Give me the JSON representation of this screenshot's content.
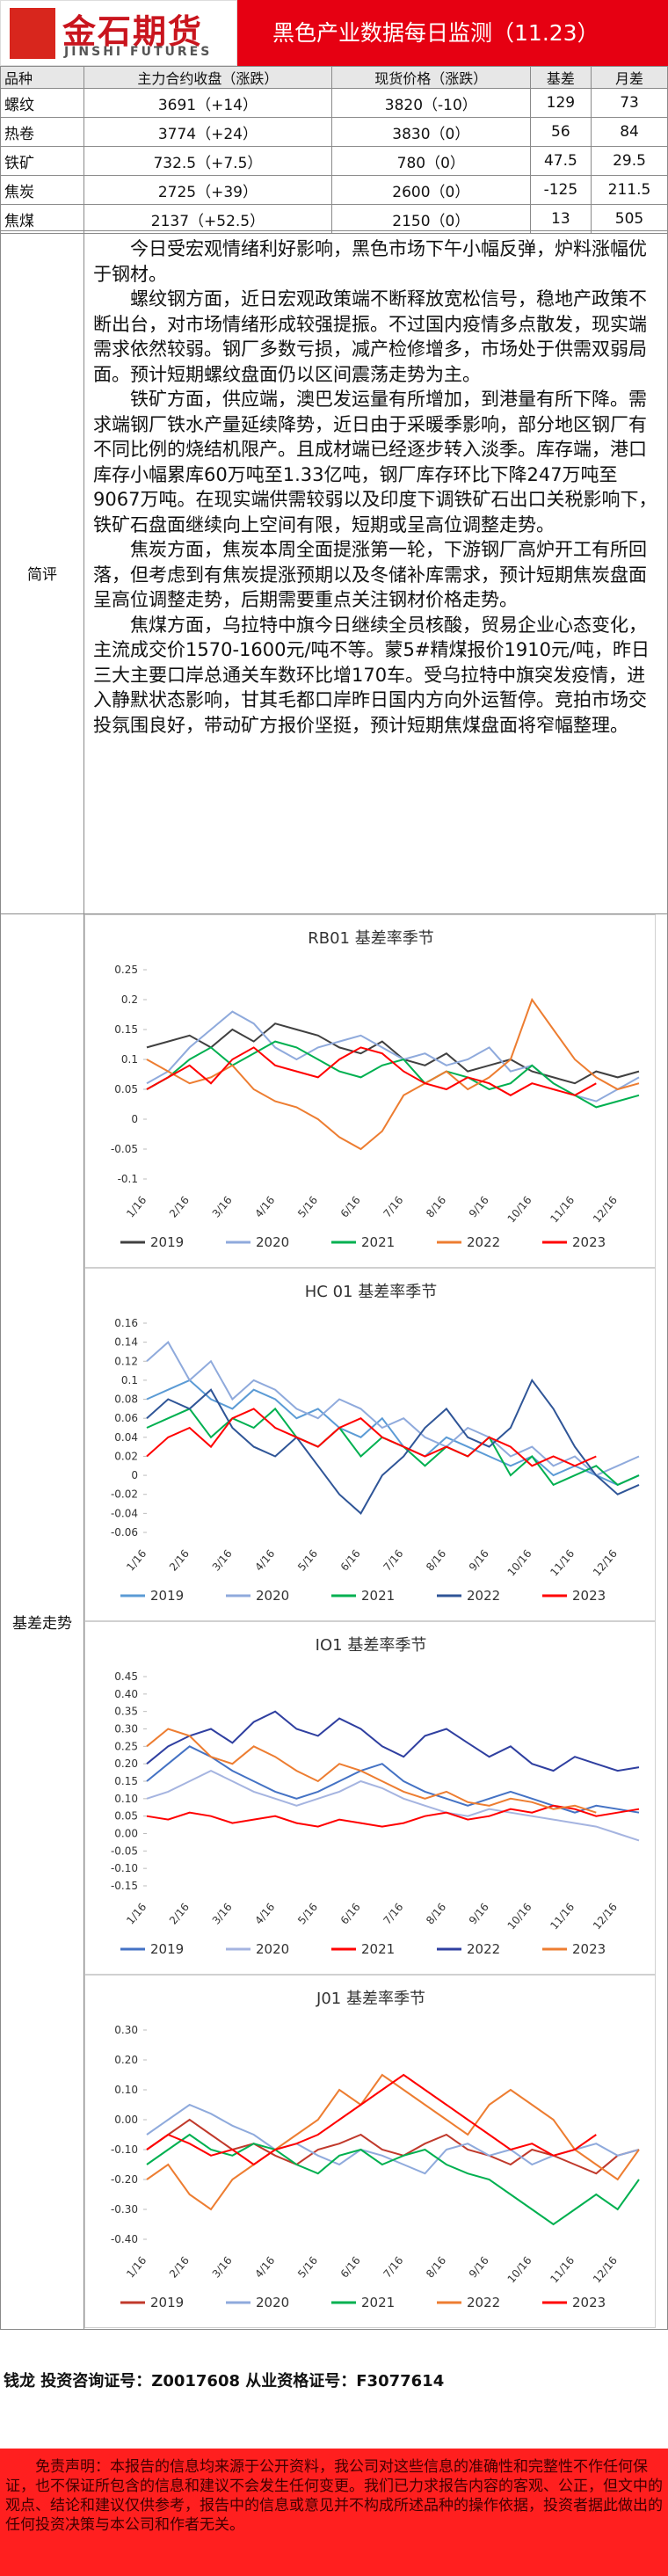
{
  "header": {
    "logo_cn": "金石期货",
    "logo_en": "JINSHI FUTURES",
    "title": "黑色产业数据每日监测（11.23）"
  },
  "table": {
    "columns": [
      "品种",
      "主力合约收盘（涨跌）",
      "现货价格（涨跌）",
      "基差",
      "月差"
    ],
    "rows": [
      [
        "螺纹",
        "3691（+14）",
        "3820（-10）",
        "129",
        "73"
      ],
      [
        "热卷",
        "3774（+24）",
        "3830（0）",
        "56",
        "84"
      ],
      [
        "铁矿",
        "732.5（+7.5）",
        "780（0）",
        "47.5",
        "29.5"
      ],
      [
        "焦炭",
        "2725（+39）",
        "2600（0）",
        "-125",
        "211.5"
      ],
      [
        "焦煤",
        "2137（+52.5）",
        "2150（0）",
        "13",
        "505"
      ]
    ]
  },
  "commentary": {
    "label": "简评",
    "paragraphs": [
      "今日受宏观情绪利好影响，黑色市场下午小幅反弹，炉料涨幅优于钢材。",
      "螺纹钢方面，近日宏观政策端不断释放宽松信号，稳地产政策不断出台，对市场情绪形成较强提振。不过国内疫情多点散发，现实端需求依然较弱。钢厂多数亏损，减产检修增多，市场处于供需双弱局面。预计短期螺纹盘面仍以区间震荡走势为主。",
      "铁矿方面，供应端，澳巴发运量有所增加，到港量有所下降。需求端钢厂铁水产量延续降势，近日由于采暖季影响，部分地区钢厂有不同比例的烧结机限产。且成材端已经逐步转入淡季。库存端，港口库存小幅累库60万吨至1.33亿吨，钢厂库存环比下降247万吨至9067万吨。在现实端供需较弱以及印度下调铁矿石出口关税影响下，铁矿石盘面继续向上空间有限，短期或呈高位调整走势。",
      "焦炭方面，焦炭本周全面提涨第一轮，下游钢厂高炉开工有所回落，但考虑到有焦炭提涨预期以及冬储补库需求，预计短期焦炭盘面呈高位调整走势，后期需要重点关注钢材价格走势。",
      "焦煤方面，乌拉特中旗今日继续全员核酸，贸易企业心态变化，主流成交价1570-1600元/吨不等。蒙5#精煤报价1910元/吨，昨日三大主要口岸总通关车数环比增170车。受乌拉特中旗突发疫情，进入静默状态影响，甘其毛都口岸昨日国内方向外运暂停。竞拍市场交投氛围良好，带动矿方报价坚挺，预计短期焦煤盘面将窄幅整理。"
    ]
  },
  "charts_label": "基差走势",
  "chart_data": [
    {
      "type": "line",
      "title": "RB01 基差率季节",
      "categories": [
        "1/16",
        null,
        "2/16",
        null,
        "3/16",
        null,
        "4/16",
        null,
        "5/16",
        null,
        "6/16",
        null,
        "7/16",
        null,
        "8/16",
        null,
        "9/16",
        null,
        "10/16",
        null,
        "11/16",
        null,
        "12/16",
        null
      ],
      "ylim": [
        -0.1,
        0.25
      ],
      "yticks": [
        -0.1,
        -0.05,
        0,
        0.05,
        0.1,
        0.15,
        0.2,
        0.25
      ],
      "series": [
        {
          "name": "2019",
          "color": "#404040",
          "values": [
            0.12,
            0.13,
            0.14,
            0.12,
            0.15,
            0.13,
            0.16,
            0.15,
            0.14,
            0.12,
            0.11,
            0.13,
            0.1,
            0.09,
            0.11,
            0.08,
            0.09,
            0.1,
            0.08,
            0.07,
            0.06,
            0.08,
            0.07,
            0.08
          ]
        },
        {
          "name": "2020",
          "color": "#8faadc",
          "values": [
            0.06,
            0.08,
            0.12,
            0.15,
            0.18,
            0.16,
            0.12,
            0.1,
            0.12,
            0.13,
            0.14,
            0.12,
            0.1,
            0.11,
            0.09,
            0.1,
            0.12,
            0.08,
            0.09,
            0.06,
            0.04,
            0.03,
            0.05,
            0.07
          ]
        },
        {
          "name": "2021",
          "color": "#00b050",
          "values": [
            0.05,
            0.07,
            0.1,
            0.12,
            0.09,
            0.11,
            0.13,
            0.12,
            0.1,
            0.08,
            0.07,
            0.09,
            0.1,
            0.06,
            0.08,
            0.07,
            0.05,
            0.06,
            0.09,
            0.06,
            0.04,
            0.02,
            0.03,
            0.04
          ]
        },
        {
          "name": "2022",
          "color": "#ed7d31",
          "values": [
            0.1,
            0.08,
            0.06,
            0.07,
            0.09,
            0.05,
            0.03,
            0.02,
            0.0,
            -0.03,
            -0.05,
            -0.02,
            0.04,
            0.06,
            0.08,
            0.05,
            0.07,
            0.1,
            0.2,
            0.15,
            0.1,
            0.07,
            0.05,
            0.06
          ]
        },
        {
          "name": "2023",
          "color": "#ff0000",
          "values": [
            0.05,
            0.07,
            0.09,
            0.06,
            0.1,
            0.12,
            0.09,
            0.08,
            0.07,
            0.1,
            0.12,
            0.11,
            0.08,
            0.06,
            0.05,
            0.07,
            0.06,
            0.04,
            0.06,
            0.05,
            0.04,
            0.06,
            null,
            null
          ]
        }
      ]
    },
    {
      "type": "line",
      "title": "HC 01 基差率季节",
      "categories": [
        "1/16",
        null,
        "2/16",
        null,
        "3/16",
        null,
        "4/16",
        null,
        "5/16",
        null,
        "6/16",
        null,
        "7/16",
        null,
        "8/16",
        null,
        "9/16",
        null,
        "10/16",
        null,
        "11/16",
        null,
        "12/16",
        null
      ],
      "ylim": [
        -0.06,
        0.16
      ],
      "yticks": [
        -0.06,
        -0.04,
        -0.02,
        0,
        0.02,
        0.04,
        0.06,
        0.08,
        0.1,
        0.12,
        0.14,
        0.16
      ],
      "series": [
        {
          "name": "2019",
          "color": "#5b9bd5",
          "values": [
            0.08,
            0.09,
            0.1,
            0.08,
            0.07,
            0.09,
            0.08,
            0.06,
            0.07,
            0.05,
            0.04,
            0.06,
            0.03,
            0.02,
            0.04,
            0.03,
            0.02,
            0.01,
            0.02,
            0.0,
            0.01,
            0.0,
            -0.01,
            0.0
          ]
        },
        {
          "name": "2020",
          "color": "#8faadc",
          "values": [
            0.12,
            0.14,
            0.1,
            0.12,
            0.08,
            0.1,
            0.09,
            0.07,
            0.06,
            0.08,
            0.07,
            0.05,
            0.06,
            0.04,
            0.03,
            0.05,
            0.04,
            0.02,
            0.03,
            0.01,
            0.02,
            0.0,
            0.01,
            0.02
          ]
        },
        {
          "name": "2021",
          "color": "#00b050",
          "values": [
            0.05,
            0.06,
            0.07,
            0.04,
            0.06,
            0.05,
            0.07,
            0.04,
            0.03,
            0.05,
            0.02,
            0.04,
            0.03,
            0.01,
            0.03,
            0.02,
            0.04,
            0.0,
            0.02,
            -0.01,
            0.0,
            0.01,
            -0.01,
            0.0
          ]
        },
        {
          "name": "2022",
          "color": "#2f5597",
          "values": [
            0.06,
            0.08,
            0.07,
            0.09,
            0.05,
            0.03,
            0.02,
            0.04,
            0.01,
            -0.02,
            -0.04,
            0.0,
            0.02,
            0.05,
            0.07,
            0.04,
            0.03,
            0.05,
            0.1,
            0.07,
            0.03,
            0.0,
            -0.02,
            -0.01
          ]
        },
        {
          "name": "2023",
          "color": "#ff0000",
          "values": [
            0.02,
            0.04,
            0.05,
            0.03,
            0.06,
            0.07,
            0.05,
            0.04,
            0.03,
            0.05,
            0.06,
            0.04,
            0.03,
            0.02,
            0.03,
            0.02,
            0.04,
            0.03,
            0.01,
            0.02,
            0.01,
            0.02,
            null,
            null
          ]
        }
      ]
    },
    {
      "type": "line",
      "title": "IO1 基差率季节",
      "categories": [
        "1/16",
        null,
        "2/16",
        null,
        "3/16",
        null,
        "4/16",
        null,
        "5/16",
        null,
        "6/16",
        null,
        "7/16",
        null,
        "8/16",
        null,
        "9/16",
        null,
        "10/16",
        null,
        "11/16",
        null,
        "12/16",
        null
      ],
      "ylim": [
        -0.15,
        0.45
      ],
      "yticks": [
        {
          "value": -0.15,
          "label": "-0.15"
        },
        {
          "value": -0.1,
          "label": "-0.10"
        },
        {
          "value": -0.05,
          "label": "-0.05"
        },
        {
          "value": 0,
          "label": "0.00"
        },
        {
          "value": 0.05,
          "label": "0.05"
        },
        {
          "value": 0.1,
          "label": "0.10"
        },
        {
          "value": 0.15,
          "label": "0.15"
        },
        {
          "value": 0.2,
          "label": "0.20"
        },
        {
          "value": 0.25,
          "label": "0.25"
        },
        {
          "value": 0.3,
          "label": "0.30"
        },
        {
          "value": 0.35,
          "label": "0.35"
        },
        {
          "value": 0.4,
          "label": "0.40"
        },
        {
          "value": 0.45,
          "label": "0.45"
        }
      ],
      "series": [
        {
          "name": "2019",
          "color": "#4472c4",
          "values": [
            0.15,
            0.2,
            0.25,
            0.22,
            0.18,
            0.15,
            0.12,
            0.1,
            0.12,
            0.15,
            0.18,
            0.2,
            0.15,
            0.12,
            0.1,
            0.08,
            0.1,
            0.12,
            0.1,
            0.08,
            0.06,
            0.08,
            0.07,
            0.06
          ]
        },
        {
          "name": "2020",
          "color": "#a5b4e0",
          "values": [
            0.1,
            0.12,
            0.15,
            0.18,
            0.15,
            0.12,
            0.1,
            0.08,
            0.1,
            0.12,
            0.15,
            0.13,
            0.1,
            0.08,
            0.06,
            0.05,
            0.07,
            0.06,
            0.05,
            0.04,
            0.03,
            0.02,
            0.0,
            -0.02
          ]
        },
        {
          "name": "2021",
          "color": "#ff0000",
          "values": [
            0.05,
            0.04,
            0.06,
            0.05,
            0.03,
            0.04,
            0.05,
            0.03,
            0.02,
            0.04,
            0.03,
            0.02,
            0.03,
            0.05,
            0.06,
            0.04,
            0.05,
            0.07,
            0.06,
            0.08,
            0.07,
            0.05,
            0.06,
            0.07
          ]
        },
        {
          "name": "2022",
          "color": "#2f3fa0",
          "values": [
            0.2,
            0.25,
            0.28,
            0.3,
            0.26,
            0.32,
            0.35,
            0.3,
            0.28,
            0.33,
            0.3,
            0.25,
            0.22,
            0.28,
            0.3,
            0.26,
            0.22,
            0.25,
            0.2,
            0.18,
            0.22,
            0.2,
            0.18,
            0.19
          ]
        },
        {
          "name": "2023",
          "color": "#ed7d31",
          "values": [
            0.25,
            0.3,
            0.28,
            0.22,
            0.2,
            0.25,
            0.22,
            0.18,
            0.15,
            0.2,
            0.18,
            0.15,
            0.12,
            0.1,
            0.12,
            0.09,
            0.08,
            0.1,
            0.09,
            0.07,
            0.08,
            0.06,
            null,
            null
          ]
        }
      ]
    },
    {
      "type": "line",
      "title": "J01 基差率季节",
      "categories": [
        "1/16",
        null,
        "2/16",
        null,
        "3/16",
        null,
        "4/16",
        null,
        "5/16",
        null,
        "6/16",
        null,
        "7/16",
        null,
        "8/16",
        null,
        "9/16",
        null,
        "10/16",
        null,
        "11/16",
        null,
        "12/16",
        null
      ],
      "ylim": [
        -0.4,
        0.3
      ],
      "yticks": [
        {
          "value": -0.4,
          "label": "-0.40"
        },
        {
          "value": -0.3,
          "label": "-0.30"
        },
        {
          "value": -0.2,
          "label": "-0.20"
        },
        {
          "value": -0.1,
          "label": "-0.10"
        },
        {
          "value": 0,
          "label": "0.00"
        },
        {
          "value": 0.1,
          "label": "0.10"
        },
        {
          "value": 0.2,
          "label": "0.20"
        },
        {
          "value": 0.3,
          "label": "0.30"
        }
      ],
      "series": [
        {
          "name": "2019",
          "color": "#c0392b",
          "values": [
            -0.1,
            -0.05,
            0.0,
            -0.05,
            -0.1,
            -0.08,
            -0.12,
            -0.15,
            -0.1,
            -0.08,
            -0.05,
            -0.1,
            -0.12,
            -0.08,
            -0.05,
            -0.1,
            -0.12,
            -0.15,
            -0.1,
            -0.12,
            -0.15,
            -0.18,
            -0.12,
            -0.1
          ]
        },
        {
          "name": "2020",
          "color": "#8faadc",
          "values": [
            -0.05,
            0.0,
            0.05,
            0.02,
            -0.02,
            -0.05,
            -0.1,
            -0.08,
            -0.12,
            -0.15,
            -0.1,
            -0.12,
            -0.15,
            -0.18,
            -0.1,
            -0.08,
            -0.12,
            -0.1,
            -0.15,
            -0.12,
            -0.1,
            -0.08,
            -0.12,
            -0.1
          ]
        },
        {
          "name": "2021",
          "color": "#00b050",
          "values": [
            -0.15,
            -0.1,
            -0.05,
            -0.1,
            -0.12,
            -0.08,
            -0.1,
            -0.15,
            -0.18,
            -0.12,
            -0.1,
            -0.15,
            -0.12,
            -0.1,
            -0.15,
            -0.18,
            -0.2,
            -0.25,
            -0.3,
            -0.35,
            -0.3,
            -0.25,
            -0.3,
            -0.2
          ]
        },
        {
          "name": "2022",
          "color": "#ed7d31",
          "values": [
            -0.2,
            -0.15,
            -0.25,
            -0.3,
            -0.2,
            -0.15,
            -0.1,
            -0.05,
            0.0,
            0.1,
            0.05,
            0.15,
            0.1,
            0.05,
            0.0,
            -0.05,
            0.05,
            0.1,
            0.05,
            0.0,
            -0.1,
            -0.15,
            -0.2,
            -0.1
          ]
        },
        {
          "name": "2023",
          "color": "#ff0000",
          "values": [
            -0.1,
            -0.05,
            -0.08,
            -0.12,
            -0.1,
            -0.15,
            -0.1,
            -0.08,
            -0.05,
            0.0,
            0.05,
            0.1,
            0.15,
            0.1,
            0.05,
            0.0,
            -0.05,
            -0.1,
            -0.08,
            -0.12,
            -0.1,
            -0.05,
            null,
            null
          ]
        }
      ]
    }
  ],
  "footer": {
    "author": "钱龙 投资咨询证号：Z0017608 从业资格证号：F3077614",
    "disclaimer": "免责声明：本报告的信息均来源于公开资料，我公司对这些信息的准确性和完整性不作任何保证，也不保证所包含的信息和建议不会发生任何变更。我们已力求报告内容的客观、公正，但文中的观点、结论和建议仅供参考，报告中的信息或意见并不构成所述品种的操作依据，投资者据此做出的任何投资决策与本公司和作者无关。"
  }
}
